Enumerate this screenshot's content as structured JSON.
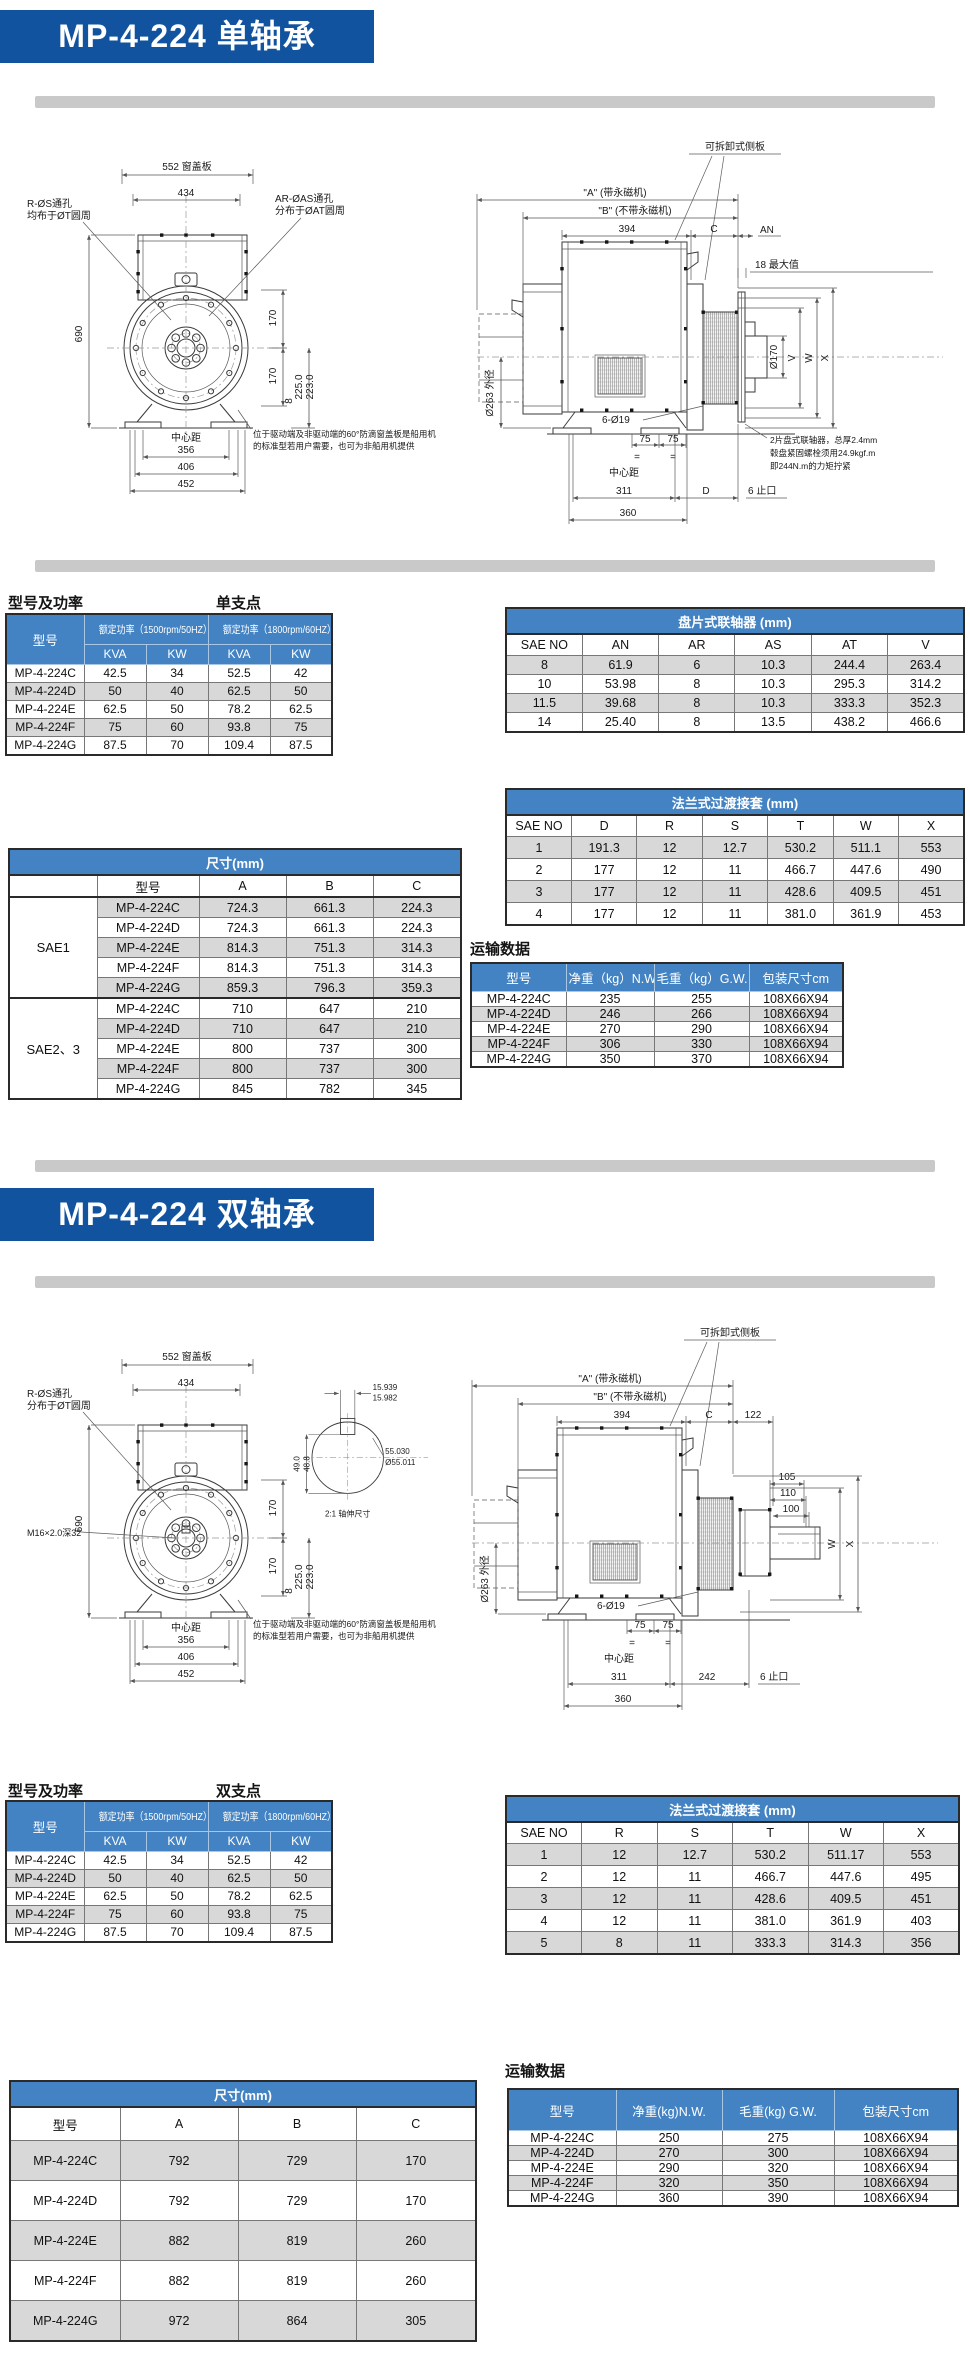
{
  "s1": {
    "title": "MP-4-224 单轴承"
  },
  "s2": {
    "title": "MP-4-224 双轴承"
  },
  "labels": {
    "power": "型号及功率",
    "single": "单支点",
    "double": "双支点",
    "transport": "运输数据"
  },
  "power_table": {
    "col_model": "型号",
    "col_50hz": "额定功率（1500rpm/50HZ）400V",
    "col_60hz": "额定功率（1800rpm/60HZ）440V",
    "kva": "KVA",
    "kw": "KW",
    "rows": [
      [
        "MP-4-224C",
        "42.5",
        "34",
        "52.5",
        "42"
      ],
      [
        "MP-4-224D",
        "50",
        "40",
        "62.5",
        "50"
      ],
      [
        "MP-4-224E",
        "62.5",
        "50",
        "78.2",
        "62.5"
      ],
      [
        "MP-4-224F",
        "75",
        "60",
        "93.8",
        "75"
      ],
      [
        "MP-4-224G",
        "87.5",
        "70",
        "109.4",
        "87.5"
      ]
    ]
  },
  "coupling_table": {
    "title": "盘片式联轴器 (mm)",
    "headers": [
      "SAE NO",
      "AN",
      "AR",
      "AS",
      "AT",
      "V"
    ],
    "rows": [
      [
        "8",
        "61.9",
        "6",
        "10.3",
        "244.4",
        "263.4"
      ],
      [
        "10",
        "53.98",
        "8",
        "10.3",
        "295.3",
        "314.2"
      ],
      [
        "11.5",
        "39.68",
        "8",
        "10.3",
        "333.3",
        "352.3"
      ],
      [
        "14",
        "25.40",
        "8",
        "13.5",
        "438.2",
        "466.6"
      ]
    ]
  },
  "flange_table1": {
    "title": "法兰式过渡接套 (mm)",
    "headers": [
      "SAE NO",
      "D",
      "R",
      "S",
      "T",
      "W",
      "X"
    ],
    "rows": [
      [
        "1",
        "191.3",
        "12",
        "12.7",
        "530.2",
        "511.1",
        "553"
      ],
      [
        "2",
        "177",
        "12",
        "11",
        "466.7",
        "447.6",
        "490"
      ],
      [
        "3",
        "177",
        "12",
        "11",
        "428.6",
        "409.5",
        "451"
      ],
      [
        "4",
        "177",
        "12",
        "11",
        "381.0",
        "361.9",
        "453"
      ]
    ]
  },
  "dims_table1": {
    "title": "尺寸(mm)",
    "col_model": "型号",
    "col_a": "A",
    "col_b": "B",
    "col_c": "C",
    "groups": [
      {
        "name": "SAE1",
        "rows": [
          [
            "MP-4-224C",
            "724.3",
            "661.3",
            "224.3"
          ],
          [
            "MP-4-224D",
            "724.3",
            "661.3",
            "224.3"
          ],
          [
            "MP-4-224E",
            "814.3",
            "751.3",
            "314.3"
          ],
          [
            "MP-4-224F",
            "814.3",
            "751.3",
            "314.3"
          ],
          [
            "MP-4-224G",
            "859.3",
            "796.3",
            "359.3"
          ]
        ]
      },
      {
        "name": "SAE2、3",
        "rows": [
          [
            "MP-4-224C",
            "710",
            "647",
            "210"
          ],
          [
            "MP-4-224D",
            "710",
            "647",
            "210"
          ],
          [
            "MP-4-224E",
            "800",
            "737",
            "300"
          ],
          [
            "MP-4-224F",
            "800",
            "737",
            "300"
          ],
          [
            "MP-4-224G",
            "845",
            "782",
            "345"
          ]
        ]
      }
    ]
  },
  "transport_table1": {
    "headers": [
      "型号",
      "净重（kg）N.W.",
      "毛重（kg）G.W.",
      "包装尺寸cm"
    ],
    "rows": [
      [
        "MP-4-224C",
        "235",
        "255",
        "108X66X94"
      ],
      [
        "MP-4-224D",
        "246",
        "266",
        "108X66X94"
      ],
      [
        "MP-4-224E",
        "270",
        "290",
        "108X66X94"
      ],
      [
        "MP-4-224F",
        "306",
        "330",
        "108X66X94"
      ],
      [
        "MP-4-224G",
        "350",
        "370",
        "108X66X94"
      ]
    ]
  },
  "flange_table2": {
    "title": "法兰式过渡接套 (mm)",
    "headers": [
      "SAE NO",
      "R",
      "S",
      "T",
      "W",
      "X"
    ],
    "rows": [
      [
        "1",
        "12",
        "12.7",
        "530.2",
        "511.17",
        "553"
      ],
      [
        "2",
        "12",
        "11",
        "466.7",
        "447.6",
        "495"
      ],
      [
        "3",
        "12",
        "11",
        "428.6",
        "409.5",
        "451"
      ],
      [
        "4",
        "12",
        "11",
        "381.0",
        "361.9",
        "403"
      ],
      [
        "5",
        "8",
        "11",
        "333.3",
        "314.3",
        "356"
      ]
    ]
  },
  "dims_table2": {
    "title": "尺寸(mm)",
    "col_model": "型号",
    "col_a": "A",
    "col_b": "B",
    "col_c": "C",
    "rows": [
      [
        "MP-4-224C",
        "792",
        "729",
        "170"
      ],
      [
        "MP-4-224D",
        "792",
        "729",
        "170"
      ],
      [
        "MP-4-224E",
        "882",
        "819",
        "260"
      ],
      [
        "MP-4-224F",
        "882",
        "819",
        "260"
      ],
      [
        "MP-4-224G",
        "972",
        "864",
        "305"
      ]
    ]
  },
  "transport_table2": {
    "headers": [
      "型号",
      "净重(kg)N.W.",
      "毛重(kg) G.W.",
      "包装尺寸cm"
    ],
    "rows": [
      [
        "MP-4-224C",
        "250",
        "275",
        "108X66X94"
      ],
      [
        "MP-4-224D",
        "270",
        "300",
        "108X66X94"
      ],
      [
        "MP-4-224E",
        "290",
        "320",
        "108X66X94"
      ],
      [
        "MP-4-224F",
        "320",
        "350",
        "108X66X94"
      ],
      [
        "MP-4-224G",
        "360",
        "390",
        "108X66X94"
      ]
    ]
  },
  "front_view": {
    "dim_top": "552 窗盖板",
    "dim_434": "434",
    "dim_690": "690",
    "dim_170": "170",
    "dim_tol_hi": "225.0",
    "dim_tol_lo": "223.0",
    "dim_8": "8",
    "center_label": "中心距",
    "dim_356": "356",
    "dim_406": "406",
    "dim_452": "452",
    "note_l1": "位于驱动端及非驱动端的60°防滴窗盖板是船用机",
    "note_l2": "的标准型若用户需要，也可为非船用机提供"
  },
  "s1_front": {
    "hole_l1": "R-ØS通孔",
    "hole_l2": "均布于ØT圆周",
    "ar_l1": "AR-ØAS通孔",
    "ar_l2": "分布于ØAT圆周"
  },
  "s2_front": {
    "hole_l1": "R-ØS通孔",
    "hole_l2": "分布于ØT圆周",
    "m16": "M16×2.0深32"
  },
  "side_view": {
    "panel": "可拆卸式侧板",
    "dim_a": "\"A\" (带永磁机)",
    "dim_b": "\"B\" (不带永磁机)",
    "dim_394": "394",
    "dim_c": "C",
    "od": "Ø263 外径",
    "d75": "75",
    "eq": "=",
    "center_label": "中心距",
    "dim_311": "311",
    "dim_360": "360",
    "holes": "6-Ø19",
    "spigot": "6 止口"
  },
  "s1_side": {
    "an": "AN",
    "max18": "18 最大值",
    "d170": "Ø170",
    "v": "V",
    "w": "W",
    "x": "X",
    "dim_d": "D",
    "note_l1": "2片盘式联轴器，总厚2.4mm",
    "note_l2": "毂盘紧固螺栓须用24.9kgf.m",
    "note_l3": "即244N.m的力矩拧紧"
  },
  "s2_side": {
    "dim_122": "122",
    "dim_105": "105",
    "dim_110": "110",
    "dim_100": "100",
    "dim_242": "242",
    "w": "W",
    "x": "X"
  },
  "shaft_detail": {
    "key_w1": "15.939",
    "key_w2": "15.982",
    "flat1": "49.0",
    "flat2": "48.8",
    "dia1": "55.030",
    "dia2": "Ø55.011",
    "caption": "2:1 轴伸尺寸"
  }
}
